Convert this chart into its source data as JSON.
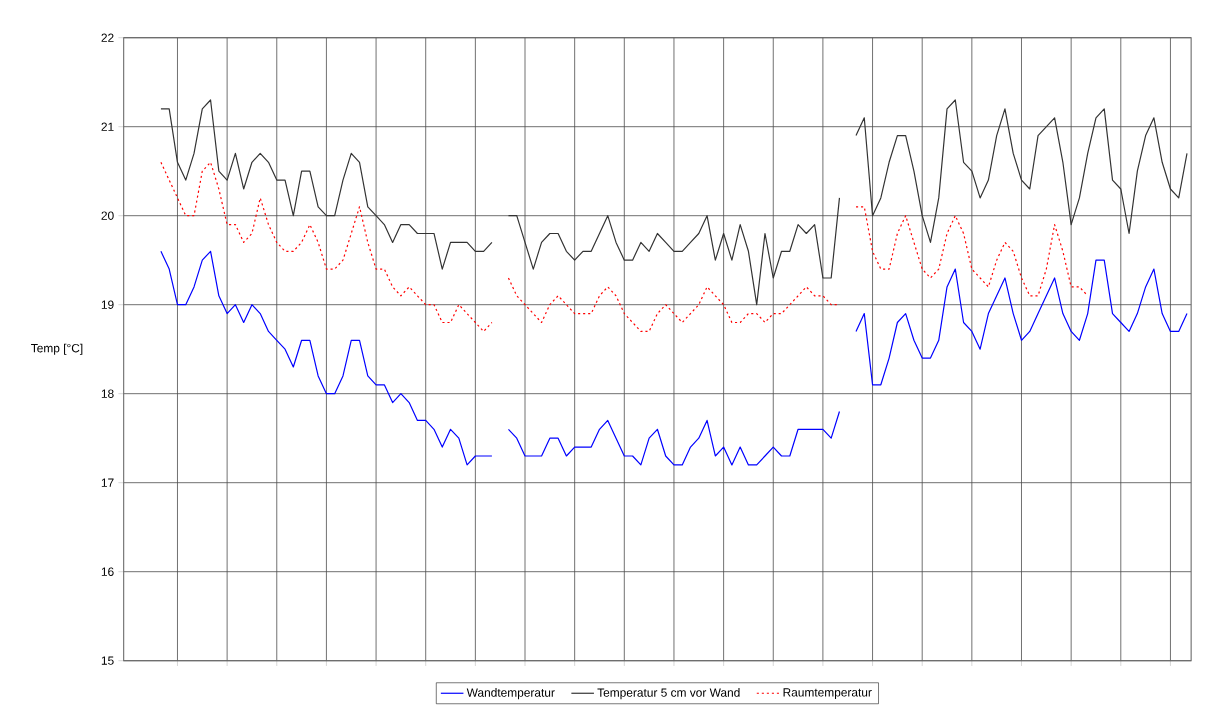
{
  "chart_data": {
    "type": "line",
    "ylabel": "Temp [°C]",
    "categories": [
      null,
      null,
      null,
      null,
      null,
      null,
      null,
      null,
      null,
      null,
      null,
      null,
      null,
      null,
      null,
      null,
      null,
      null,
      null,
      null,
      null,
      null,
      null,
      null,
      null,
      null,
      null,
      null,
      null,
      null,
      null,
      null,
      null,
      null,
      null,
      null,
      null,
      null,
      null,
      null,
      null,
      null,
      null,
      null,
      null,
      null,
      null,
      null,
      null,
      null,
      null,
      null,
      null,
      null,
      null,
      null,
      null,
      null,
      null,
      null,
      null,
      null,
      null,
      null,
      null,
      null,
      null,
      null,
      null,
      null,
      null,
      null,
      null,
      null,
      null,
      null,
      null,
      null,
      null,
      null,
      null,
      null,
      null,
      null,
      null,
      null,
      null,
      null,
      null,
      null,
      null,
      null,
      null,
      null,
      null,
      null,
      null,
      null,
      null,
      null,
      null,
      null,
      null,
      null,
      null,
      null,
      null,
      null,
      null,
      null,
      null,
      null,
      null,
      null,
      null,
      null,
      null,
      null,
      null,
      null,
      null,
      null,
      null,
      null,
      null,
      null,
      null,
      null,
      null
    ],
    "ylim": [
      15,
      22
    ],
    "yticks": [
      15,
      16,
      17,
      18,
      19,
      20,
      21,
      22
    ],
    "grid": true,
    "legend": "bottom",
    "tick_labels": "y",
    "series": [
      {
        "name": "Wandtemperatur",
        "color": "#0000ff",
        "line_style": "solid",
        "values": [
          null,
          null,
          null,
          null,
          19.6,
          19.4,
          19.0,
          19.0,
          19.2,
          19.5,
          19.6,
          19.1,
          18.9,
          19.0,
          18.8,
          19.0,
          18.9,
          18.7,
          18.6,
          18.5,
          18.3,
          18.6,
          18.6,
          18.2,
          18.0,
          18.0,
          18.2,
          18.6,
          18.6,
          18.2,
          18.1,
          18.1,
          17.9,
          18.0,
          17.9,
          17.7,
          17.7,
          17.6,
          17.4,
          17.6,
          17.5,
          17.2,
          17.3,
          17.3,
          17.3,
          null,
          17.6,
          17.5,
          17.3,
          17.3,
          17.3,
          17.5,
          17.5,
          17.3,
          17.4,
          17.4,
          17.4,
          17.6,
          17.7,
          17.5,
          17.3,
          17.3,
          17.2,
          17.5,
          17.6,
          17.3,
          17.2,
          17.2,
          17.4,
          17.5,
          17.7,
          17.3,
          17.4,
          17.2,
          17.4,
          17.2,
          17.2,
          17.3,
          17.4,
          17.3,
          17.3,
          17.6,
          17.6,
          17.6,
          17.6,
          17.5,
          17.8,
          null,
          18.7,
          18.9,
          18.1,
          18.1,
          18.4,
          18.8,
          18.9,
          18.6,
          18.4,
          18.4,
          18.6,
          19.2,
          19.4,
          18.8,
          18.7,
          18.5,
          18.9,
          19.1,
          19.3,
          18.9,
          18.6,
          18.7,
          18.9,
          19.1,
          19.3,
          18.9,
          18.7,
          18.6,
          18.9,
          19.5,
          19.5,
          18.9,
          18.8,
          18.7,
          18.9,
          19.2,
          19.4,
          18.9,
          18.7,
          18.7,
          18.9
        ]
      },
      {
        "name": "Temperatur 5 cm vor Wand",
        "color": "#333333",
        "line_style": "solid",
        "values": [
          null,
          null,
          null,
          null,
          21.2,
          21.2,
          20.6,
          20.4,
          20.7,
          21.2,
          21.3,
          20.5,
          20.4,
          20.7,
          20.3,
          20.6,
          20.7,
          20.6,
          20.4,
          20.4,
          20.0,
          20.5,
          20.5,
          20.1,
          20.0,
          20.0,
          20.4,
          20.7,
          20.6,
          20.1,
          20.0,
          19.9,
          19.7,
          19.9,
          19.9,
          19.8,
          19.8,
          19.8,
          19.4,
          19.7,
          19.7,
          19.7,
          19.6,
          19.6,
          19.7,
          null,
          20.0,
          20.0,
          19.7,
          19.4,
          19.7,
          19.8,
          19.8,
          19.6,
          19.5,
          19.6,
          19.6,
          19.8,
          20.0,
          19.7,
          19.5,
          19.5,
          19.7,
          19.6,
          19.8,
          19.7,
          19.6,
          19.6,
          19.7,
          19.8,
          20.0,
          19.5,
          19.8,
          19.5,
          19.9,
          19.6,
          19.0,
          19.8,
          19.3,
          19.6,
          19.6,
          19.9,
          19.8,
          19.9,
          19.3,
          19.3,
          20.2,
          null,
          20.9,
          21.1,
          20.0,
          20.2,
          20.6,
          20.9,
          20.9,
          20.5,
          20.0,
          19.7,
          20.2,
          21.2,
          21.3,
          20.6,
          20.5,
          20.2,
          20.4,
          20.9,
          21.2,
          20.7,
          20.4,
          20.3,
          20.9,
          21.0,
          21.1,
          20.6,
          19.9,
          20.2,
          20.7,
          21.1,
          21.2,
          20.4,
          20.3,
          19.8,
          20.5,
          20.9,
          21.1,
          20.6,
          20.3,
          20.2,
          20.7
        ]
      },
      {
        "name": "Raumtemperatur",
        "color": "#ff0000",
        "line_style": "dotted",
        "values": [
          null,
          null,
          null,
          null,
          20.6,
          20.4,
          20.2,
          20.0,
          20.0,
          20.5,
          20.6,
          20.3,
          19.9,
          19.9,
          19.7,
          19.8,
          20.2,
          19.9,
          19.7,
          19.6,
          19.6,
          19.7,
          19.9,
          19.7,
          19.4,
          19.4,
          19.5,
          19.8,
          20.1,
          19.7,
          19.4,
          19.4,
          19.2,
          19.1,
          19.2,
          19.1,
          19.0,
          19.0,
          18.8,
          18.8,
          19.0,
          18.9,
          18.8,
          18.7,
          18.8,
          null,
          19.3,
          19.1,
          19.0,
          18.9,
          18.8,
          19.0,
          19.1,
          19.0,
          18.9,
          18.9,
          18.9,
          19.1,
          19.2,
          19.1,
          18.9,
          18.8,
          18.7,
          18.7,
          18.9,
          19.0,
          18.9,
          18.8,
          18.9,
          19.0,
          19.2,
          19.1,
          19.0,
          18.8,
          18.8,
          18.9,
          18.9,
          18.8,
          18.9,
          18.9,
          19.0,
          19.1,
          19.2,
          19.1,
          19.1,
          19.0,
          19.0,
          null,
          20.1,
          20.1,
          19.6,
          19.4,
          19.4,
          19.8,
          20.0,
          19.7,
          19.4,
          19.3,
          19.4,
          19.8,
          20.0,
          19.8,
          19.4,
          19.3,
          19.2,
          19.5,
          19.7,
          19.6,
          19.3,
          19.1,
          19.1,
          19.4,
          19.9,
          19.6,
          19.2,
          19.2,
          19.1,
          null,
          null,
          null,
          null,
          null,
          null,
          null,
          null,
          null,
          null,
          null,
          null
        ]
      }
    ]
  }
}
